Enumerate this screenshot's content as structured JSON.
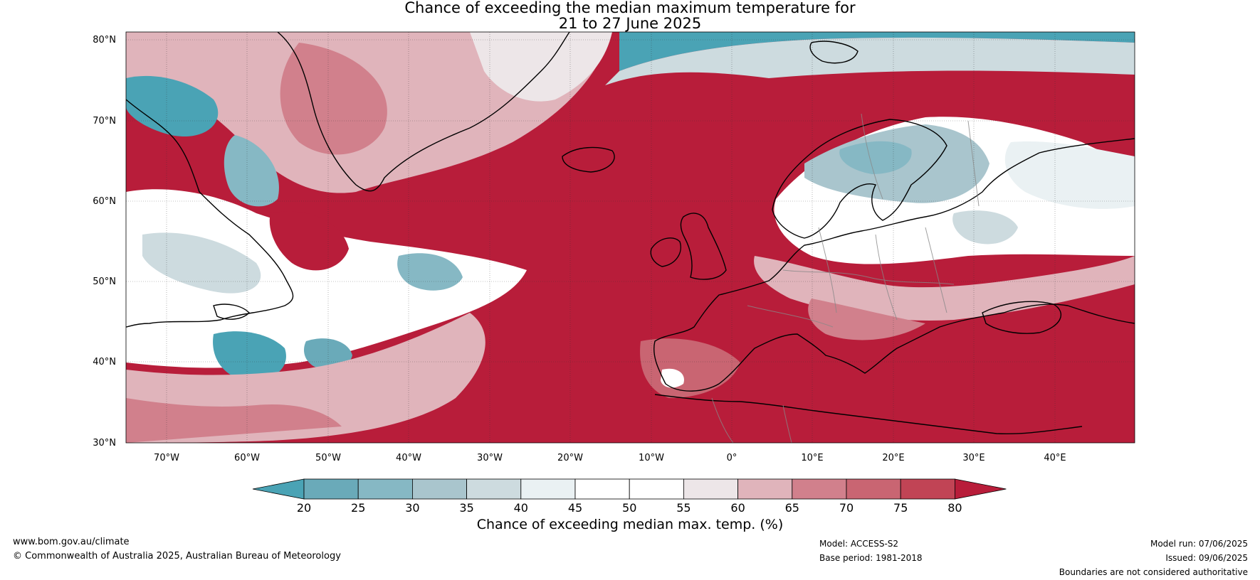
{
  "title": {
    "line1": "Chance of exceeding the median maximum temperature for",
    "line2": "21 to 27 June 2025"
  },
  "map": {
    "lat_labels": [
      "80°N",
      "70°N",
      "60°N",
      "50°N",
      "40°N",
      "30°N"
    ],
    "lon_labels": [
      "70°W",
      "60°W",
      "50°W",
      "40°W",
      "30°W",
      "20°W",
      "10°W",
      "0°",
      "10°E",
      "20°E",
      "30°E",
      "40°E"
    ],
    "lat_range": [
      30,
      81
    ],
    "lon_range": [
      -75,
      50
    ]
  },
  "colorbar": {
    "ticks": [
      "20",
      "25",
      "30",
      "35",
      "40",
      "45",
      "50",
      "55",
      "60",
      "65",
      "70",
      "75",
      "80"
    ],
    "colors": [
      "#4aa3b5",
      "#6aaab9",
      "#86b8c4",
      "#a9c5cd",
      "#cddbdf",
      "#eaf1f3",
      "#ffffff",
      "#ffffff",
      "#ede6e8",
      "#e0b4bb",
      "#d1808c",
      "#c96572",
      "#c14455",
      "#b81d3a"
    ],
    "label": "Chance of exceeding median max. temp. (%)"
  },
  "footer": {
    "website": "www.bom.gov.au/climate",
    "copyright": "© Commonwealth of Australia 2025, Australian Bureau of Meteorology",
    "model": "Model: ACCESS-S2",
    "base_period": "Base period: 1981-2018",
    "model_run": "Model run: 07/06/2025",
    "issued": "Issued: 09/06/2025",
    "disclaimer": "Boundaries are not considered authoritative"
  }
}
